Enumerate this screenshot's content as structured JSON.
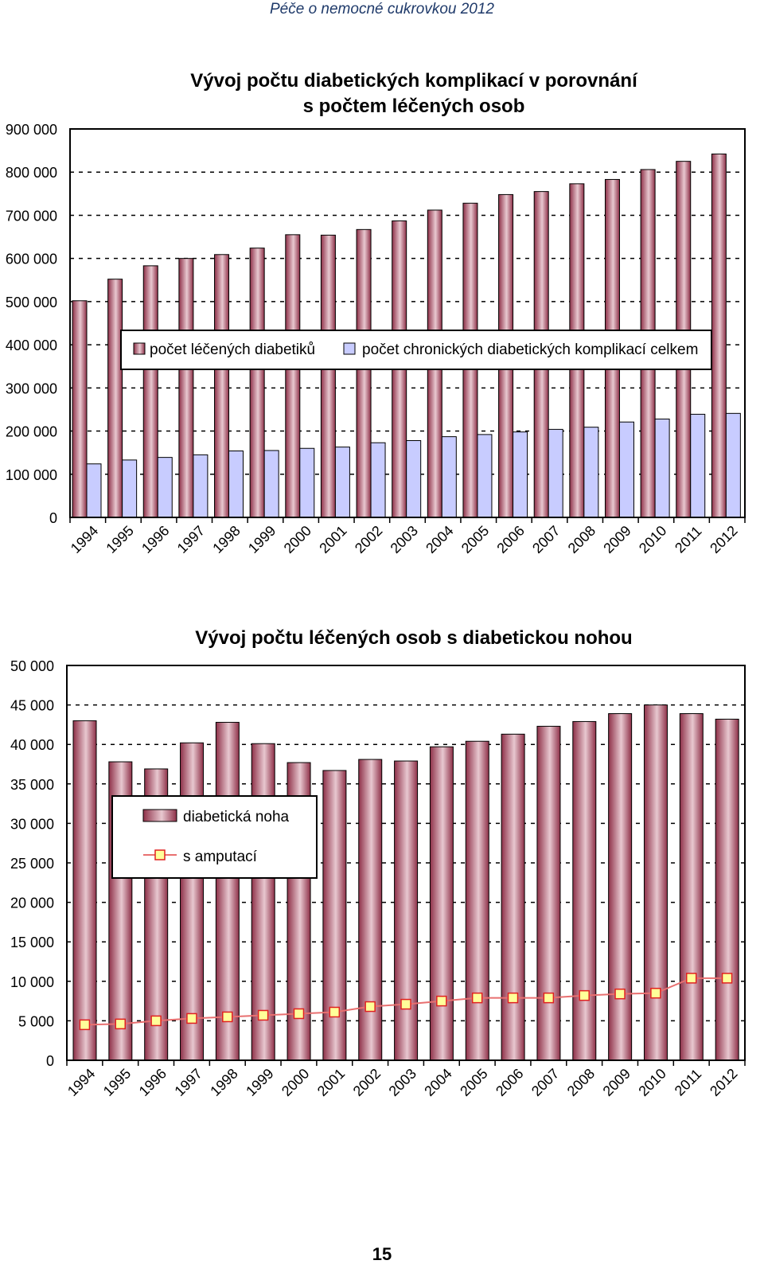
{
  "header": {
    "title": "Péče o nemocné cukrovkou 2012"
  },
  "page_number": "15",
  "chart_data": [
    {
      "type": "bar",
      "title": "Vývoj počtu diabetických komplikací v porovnání s počtem léčených osob",
      "title_lines": [
        "Vývoj počtu diabetických komplikací v porovnání",
        "s počtem léčených osob"
      ],
      "categories": [
        "1994",
        "1995",
        "1996",
        "1997",
        "1998",
        "1999",
        "2000",
        "2001",
        "2002",
        "2003",
        "2004",
        "2005",
        "2006",
        "2007",
        "2008",
        "2009",
        "2010",
        "2011",
        "2012"
      ],
      "series": [
        {
          "name": "počet léčených diabetiků",
          "color": "#8e3048",
          "values": [
            502000,
            552000,
            583000,
            600000,
            609000,
            624000,
            655000,
            654000,
            667000,
            687000,
            712000,
            728000,
            748000,
            755000,
            773000,
            783000,
            806000,
            825000,
            842000
          ]
        },
        {
          "name": "počet chronických diabetických komplikací celkem",
          "color": "#c8ccff",
          "values": [
            124000,
            133000,
            139000,
            145000,
            154000,
            155000,
            160000,
            163000,
            173000,
            178000,
            187000,
            192000,
            198000,
            204000,
            209000,
            221000,
            228000,
            239000,
            241000
          ]
        }
      ],
      "y_ticks": [
        "0",
        "100 000",
        "200 000",
        "300 000",
        "400 000",
        "500 000",
        "600 000",
        "700 000",
        "800 000",
        "900 000"
      ],
      "ylim": [
        0,
        900000
      ],
      "grid": true,
      "legend_position": "middle"
    },
    {
      "type": "bar",
      "title": "Vývoj počtu léčených osob s diabetickou nohou",
      "categories": [
        "1994",
        "1995",
        "1996",
        "1997",
        "1998",
        "1999",
        "2000",
        "2001",
        "2002",
        "2003",
        "2004",
        "2005",
        "2006",
        "2007",
        "2008",
        "2009",
        "2010",
        "2011",
        "2012"
      ],
      "series": [
        {
          "name": "diabetická noha",
          "type": "bar",
          "color": "#8e3048",
          "values": [
            43000,
            37800,
            36900,
            40200,
            42800,
            40100,
            37700,
            36700,
            38100,
            37900,
            39700,
            40400,
            41300,
            42300,
            42900,
            43900,
            45000,
            43900,
            43200
          ]
        },
        {
          "name": "s amputací",
          "type": "line",
          "color": "#e87070",
          "marker_color": "#ffff99",
          "values": [
            4500,
            4600,
            5000,
            5300,
            5500,
            5700,
            5900,
            6100,
            6800,
            7100,
            7500,
            7900,
            7900,
            7900,
            8200,
            8400,
            8500,
            10400,
            10400
          ]
        }
      ],
      "y_ticks": [
        "0",
        "5 000",
        "10 000",
        "15 000",
        "20 000",
        "25 000",
        "30 000",
        "35 000",
        "40 000",
        "45 000",
        "50 000"
      ],
      "ylim": [
        0,
        50000
      ],
      "grid": true,
      "legend_position": "left"
    }
  ]
}
